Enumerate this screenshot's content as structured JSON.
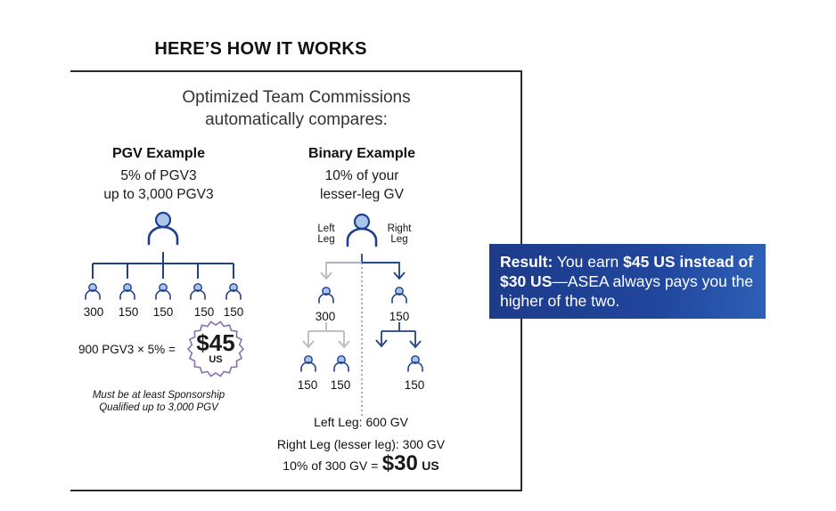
{
  "heading": "HERE’S HOW IT WORKS",
  "intro": {
    "line1": "Optimized Team Commissions",
    "line2": "automatically compares:"
  },
  "pgv": {
    "title": "PGV Example",
    "desc_line1": "5% of PGV3",
    "desc_line2": "up to 3,000 PGV3",
    "values": [
      "300",
      "150",
      "150",
      "150",
      "150"
    ],
    "calc_text": "900 PGV3 × 5% =",
    "amount": "$45",
    "amount_unit": "US",
    "note_line1": "Must be at least Sponsorship",
    "note_line2": "Qualified up to 3,000 PGV"
  },
  "binary": {
    "title": "Binary Example",
    "desc_line1": "10% of your",
    "desc_line2": "lesser-leg GV",
    "left_label_1": "Left",
    "left_label_2": "Leg",
    "right_label_1": "Right",
    "right_label_2": "Leg",
    "level1_left": "300",
    "level1_right": "150",
    "level2_a": "150",
    "level2_b": "150",
    "level2_c": "150",
    "left_leg": "Left Leg: 600 GV",
    "right_leg": "Right Leg (lesser leg): 300 GV",
    "calc_text": "10% of 300 GV =",
    "amount": "$30",
    "amount_unit": "US"
  },
  "result": {
    "label": "Result:",
    "text1": " You earn ",
    "bold1": "$45 US instead of $30 US",
    "text2": "—ASEA always pays you the higher of the two."
  },
  "colors": {
    "accent": "#1f3f8f",
    "icon_fill": "#a9c6ea",
    "gray": "#b9b9b9",
    "frame": "#2b2b2b"
  }
}
